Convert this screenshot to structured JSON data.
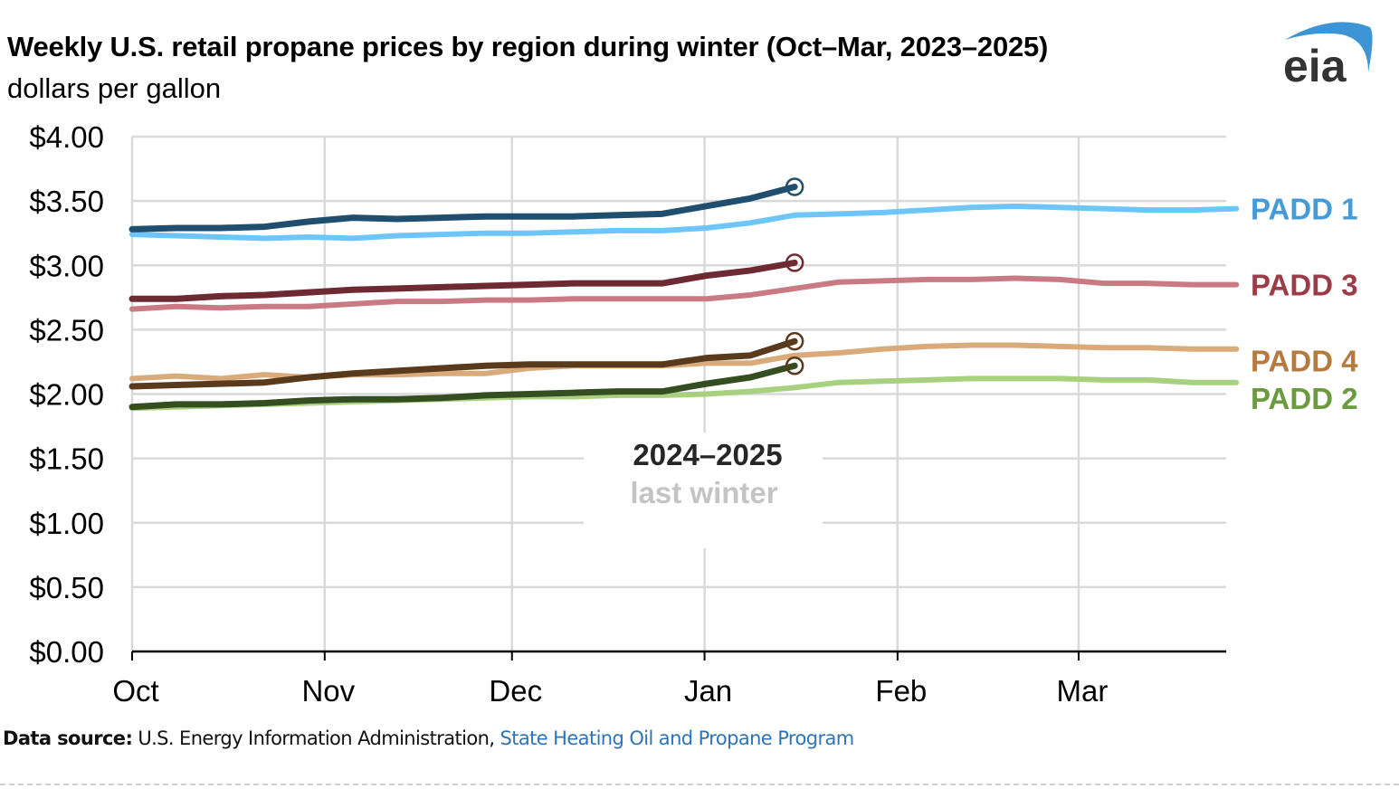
{
  "header": {
    "title": "Weekly U.S. retail propane prices by region during winter (Oct–Mar, 2023–2025)",
    "subtitle": "dollars per gallon",
    "logo_text": "eia"
  },
  "footer": {
    "source_label": "Data source:",
    "source_text": " U.S. Energy Information Administration, ",
    "source_link": "State Heating Oil and Propane Program"
  },
  "annotation": {
    "current_label": "2024–2025",
    "last_label": "last winter"
  },
  "colors": {
    "grid": "#d9d9d9",
    "axis": "#000000",
    "logo_arc": "#3d95d6",
    "logo_text": "#333333"
  },
  "chart_data": {
    "type": "line",
    "title": "Weekly U.S. retail propane prices by region during winter (Oct–Mar, 2023–2025)",
    "ylabel": "dollars per gallon",
    "xlabel": "",
    "ylim": [
      0,
      4
    ],
    "yticks": [
      "$0.00",
      "$0.50",
      "$1.00",
      "$1.50",
      "$2.00",
      "$2.50",
      "$3.00",
      "$3.50",
      "$4.00"
    ],
    "ytick_values": [
      0,
      0.5,
      1,
      1.5,
      2,
      2.5,
      3,
      3.5,
      4
    ],
    "xticks": [
      "Oct",
      "Nov",
      "Dec",
      "Jan",
      "Feb",
      "Mar"
    ],
    "xtick_weeks": [
      0,
      4.36,
      8.6,
      12.96,
      17.33,
      21.43
    ],
    "xlim_weeks": [
      0,
      24.77
    ],
    "grid": true,
    "legend": "right-end labels",
    "series": [
      {
        "name": "PADD 1 last winter",
        "region": "PADD 1",
        "winter": "last winter",
        "color": "#6ec5fa",
        "values": [
          3.24,
          3.23,
          3.22,
          3.21,
          3.22,
          3.21,
          3.23,
          3.24,
          3.25,
          3.25,
          3.26,
          3.27,
          3.27,
          3.29,
          3.33,
          3.39,
          3.4,
          3.41,
          3.43,
          3.45,
          3.46,
          3.45,
          3.44,
          3.43,
          3.43,
          3.44
        ]
      },
      {
        "name": "PADD 3 last winter",
        "region": "PADD 3",
        "winter": "last winter",
        "color": "#c97a83",
        "values": [
          2.66,
          2.68,
          2.67,
          2.68,
          2.68,
          2.7,
          2.72,
          2.72,
          2.73,
          2.73,
          2.74,
          2.74,
          2.74,
          2.74,
          2.77,
          2.82,
          2.87,
          2.88,
          2.89,
          2.89,
          2.9,
          2.89,
          2.86,
          2.86,
          2.85,
          2.85
        ]
      },
      {
        "name": "PADD 4 last winter",
        "region": "PADD 4",
        "winter": "last winter",
        "color": "#d9ab7a",
        "values": [
          2.12,
          2.14,
          2.12,
          2.15,
          2.13,
          2.15,
          2.15,
          2.16,
          2.16,
          2.2,
          2.22,
          2.22,
          2.22,
          2.24,
          2.24,
          2.3,
          2.32,
          2.35,
          2.37,
          2.38,
          2.38,
          2.37,
          2.36,
          2.36,
          2.35,
          2.35
        ]
      },
      {
        "name": "PADD 2 last winter",
        "region": "PADD 2",
        "winter": "last winter",
        "color": "#a7d07f",
        "values": [
          1.89,
          1.9,
          1.91,
          1.92,
          1.93,
          1.94,
          1.95,
          1.96,
          1.97,
          1.98,
          1.98,
          1.99,
          1.99,
          2.0,
          2.02,
          2.05,
          2.09,
          2.1,
          2.11,
          2.12,
          2.12,
          2.12,
          2.11,
          2.11,
          2.09,
          2.09
        ]
      },
      {
        "name": "PADD 1 2024–2025",
        "region": "PADD 1",
        "winter": "2024–2025",
        "color": "#1f4e6e",
        "values": [
          3.28,
          3.29,
          3.29,
          3.3,
          3.34,
          3.37,
          3.36,
          3.37,
          3.38,
          3.38,
          3.38,
          3.39,
          3.4,
          3.46,
          3.52,
          3.61
        ]
      },
      {
        "name": "PADD 3 2024–2025",
        "region": "PADD 3",
        "winter": "2024–2025",
        "color": "#6e2a32",
        "values": [
          2.74,
          2.74,
          2.76,
          2.77,
          2.79,
          2.81,
          2.82,
          2.83,
          2.84,
          2.85,
          2.86,
          2.86,
          2.86,
          2.92,
          2.96,
          3.02
        ]
      },
      {
        "name": "PADD 4 2024–2025",
        "region": "PADD 4",
        "winter": "2024–2025",
        "color": "#5a3a1c",
        "values": [
          2.06,
          2.07,
          2.08,
          2.09,
          2.13,
          2.16,
          2.18,
          2.2,
          2.22,
          2.23,
          2.23,
          2.23,
          2.23,
          2.28,
          2.3,
          2.41
        ]
      },
      {
        "name": "PADD 2 2024–2025",
        "region": "PADD 2",
        "winter": "2024–2025",
        "color": "#344d21",
        "values": [
          1.9,
          1.92,
          1.92,
          1.93,
          1.95,
          1.96,
          1.96,
          1.97,
          1.99,
          2.0,
          2.01,
          2.02,
          2.02,
          2.08,
          2.13,
          2.22
        ]
      }
    ],
    "end_markers": [
      {
        "region": "PADD 1",
        "value": 3.61,
        "color": "#1f4e6e"
      },
      {
        "region": "PADD 3",
        "value": 3.02,
        "color": "#6e2a32"
      },
      {
        "region": "PADD 4",
        "value": 2.41,
        "color": "#5a3a1c"
      },
      {
        "region": "PADD 2",
        "value": 2.22,
        "color": "#5a3a1c"
      }
    ],
    "labels": [
      {
        "text": "PADD 1",
        "value": 3.44,
        "color": "#459bd7"
      },
      {
        "text": "PADD 3",
        "value": 2.85,
        "color": "#9b3d48"
      },
      {
        "text": "PADD 4",
        "value": 2.26,
        "color": "#b57a3e"
      },
      {
        "text": "PADD 2",
        "value": 1.97,
        "color": "#6b9a3f"
      }
    ]
  }
}
